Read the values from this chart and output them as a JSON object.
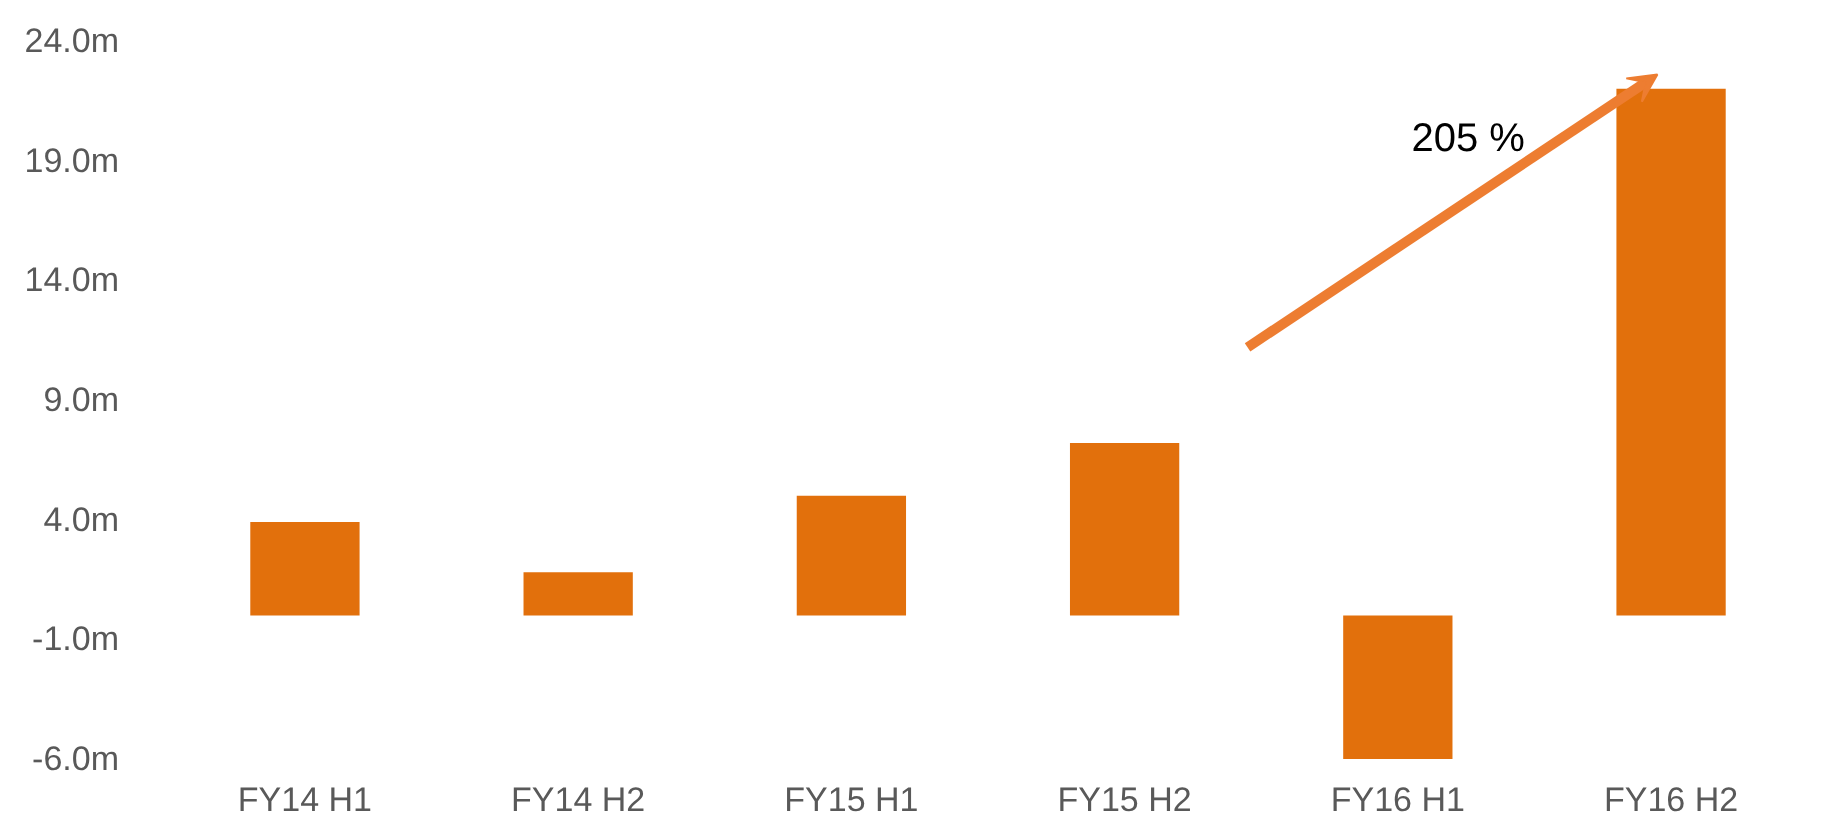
{
  "chart_data": {
    "type": "bar",
    "categories": [
      "FY14 H1",
      "FY14 H2",
      "FY15 H1",
      "FY15 H2",
      "FY16 H1",
      "FY16 H2"
    ],
    "values": [
      3.9,
      1.8,
      5.0,
      7.2,
      -6.0,
      22.0
    ],
    "color": "#e2700c",
    "ylim": [
      -6,
      24
    ],
    "yticks": [
      {
        "value": -6,
        "label": "-6.0m"
      },
      {
        "value": -1,
        "label": "-1.0m"
      },
      {
        "value": 4,
        "label": "4.0m"
      },
      {
        "value": 9,
        "label": "9.0m"
      },
      {
        "value": 14,
        "label": "14.0m"
      },
      {
        "value": 19,
        "label": "19.0m"
      },
      {
        "value": 24,
        "label": "24.0m"
      }
    ],
    "grid": false,
    "annotations": [
      "205 %"
    ]
  }
}
